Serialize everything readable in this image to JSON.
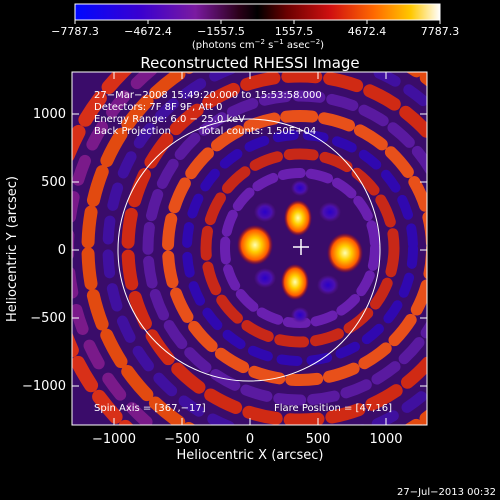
{
  "colorbar": {
    "ticks": [
      "−7787.3",
      "−4672.4",
      "−1557.5",
      "1557.5",
      "4672.4",
      "7787.3"
    ],
    "units_prefix": "(photons cm",
    "units_exp1": "−2",
    "units_mid": " s",
    "units_exp2": "−1",
    "units_mid2": " asec",
    "units_exp3": "−2",
    "units_suffix": ")"
  },
  "title": "Reconstructed RHESSI Image",
  "info": {
    "line1": "27−Mar−2008 15:49:20.000 to 15:53:58.000",
    "line2": "Detectors: 7F 8F 9F, Att 0",
    "line3": "Energy Range: 6.0 − 25.0 keV",
    "line4a": "Back Projection",
    "line4b": "Total counts: 1.50E+04"
  },
  "footer": {
    "spin_axis": "Spin Axis = [367,−17]",
    "flare_position": "Flare Position = [47,16]"
  },
  "axes": {
    "xlabel": "Heliocentric X (arcsec)",
    "ylabel": "Heliocentric Y (arcsec)",
    "xticks": [
      "−1000",
      "−500",
      "0",
      "500",
      "1000"
    ],
    "yticks": [
      "1000",
      "500",
      "0",
      "−500",
      "−1000"
    ]
  },
  "timestamp": "27−Jul−2013 00:32",
  "colors": {
    "background": "#000000",
    "frame": "#ffffff",
    "circle": "#ffffff"
  }
}
